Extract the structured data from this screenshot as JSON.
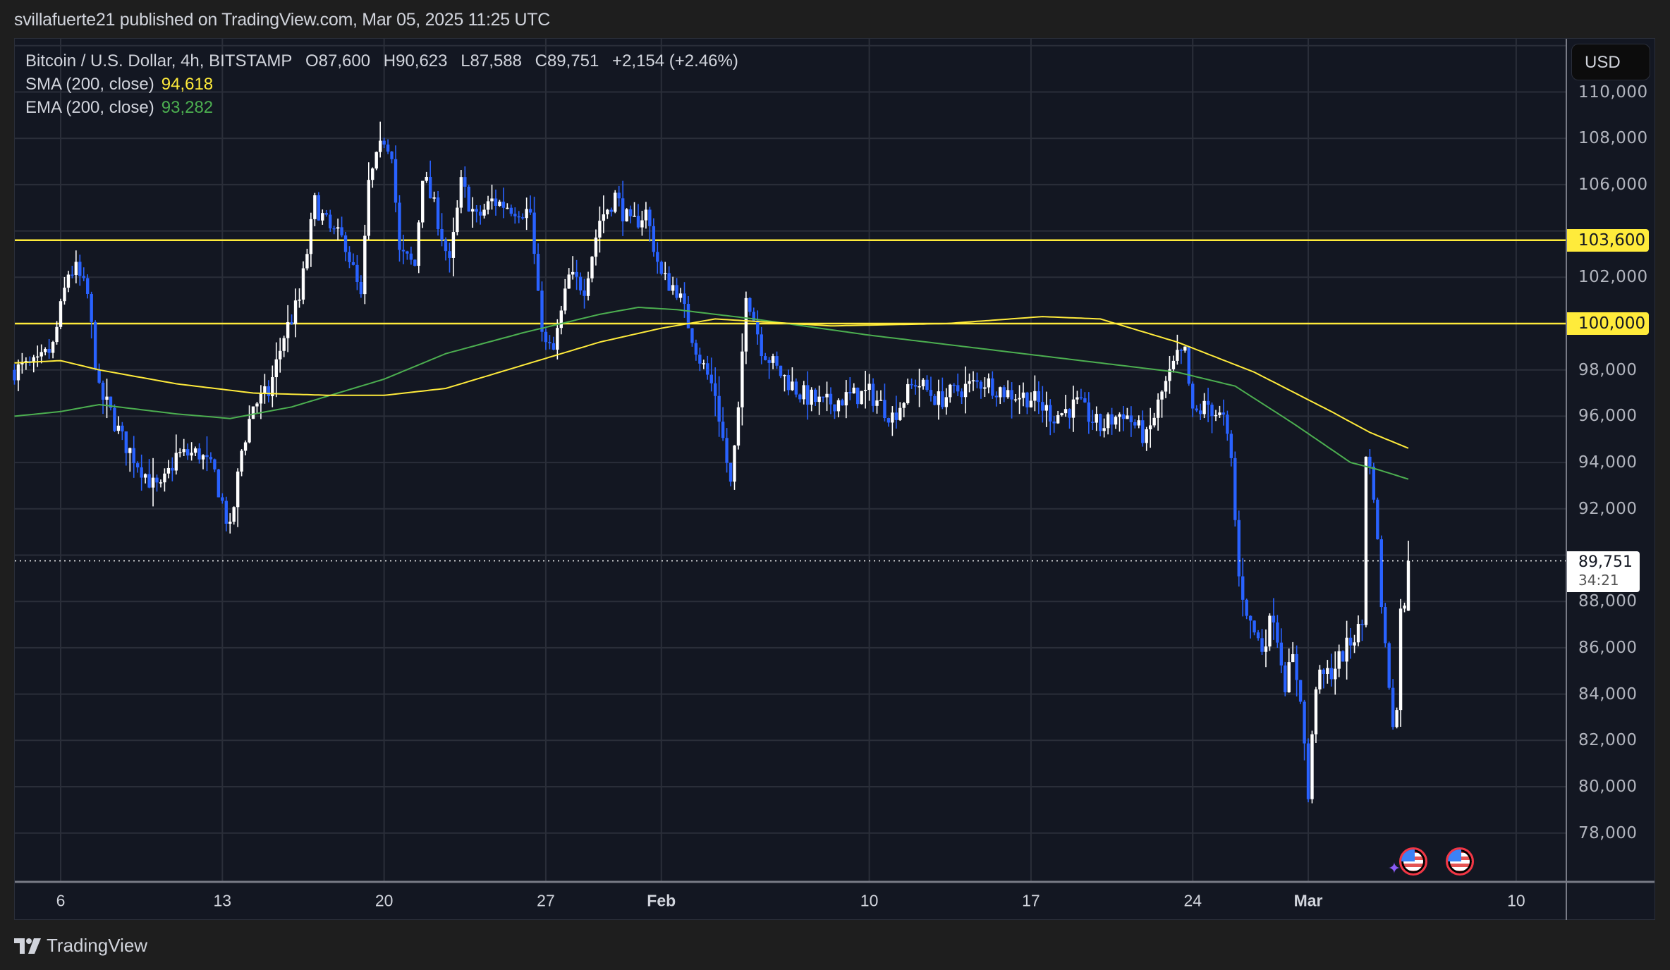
{
  "header": {
    "published": "svillafuerte21 published on TradingView.com, Mar 05, 2025 11:25 UTC"
  },
  "legend": {
    "symbol": "Bitcoin / U.S. Dollar, 4h, BITSTAMP",
    "open": "O87,600",
    "high": "H90,623",
    "low": "L87,588",
    "close": "C89,751",
    "change": "+2,154 (+2.46%)",
    "sma_label": "SMA (200, close)",
    "sma_value": "94,618",
    "ema_label": "EMA (200, close)",
    "ema_value": "93,282"
  },
  "currency_button": "USD",
  "price_tag": {
    "price": "89,751",
    "countdown": "34:21"
  },
  "level_tags": [
    {
      "label": "103,600",
      "price": 103600
    },
    {
      "label": "100,000",
      "price": 100000
    }
  ],
  "brand": "TradingView",
  "colors": {
    "background": "#131722",
    "grid": "#2a2e39",
    "up_candle": "#ffffff",
    "down_candle": "#2962ff",
    "sma": "#ffeb3b",
    "ema": "#4caf50",
    "level_line": "#ffeb3b"
  },
  "chart_data": {
    "type": "candlestick",
    "title": "Bitcoin / U.S. Dollar, 4h, BITSTAMP",
    "xlabel": "",
    "ylabel": "USD",
    "ylim": [
      76500,
      112500
    ],
    "grid": true,
    "y_ticks": [
      78000,
      80000,
      82000,
      84000,
      86000,
      88000,
      90000,
      92000,
      94000,
      96000,
      98000,
      100000,
      102000,
      104000,
      106000,
      108000,
      110000
    ],
    "y_tick_labels": [
      "78,000",
      "80,000",
      "82,000",
      "84,000",
      "86,000",
      "88,000",
      "90,000",
      "92,000",
      "94,000",
      "96,000",
      "98,000",
      "100,000",
      "102,000",
      "",
      "106,000",
      "108,000",
      "110,000"
    ],
    "x_ticks": [
      {
        "label": "6",
        "index": 0
      },
      {
        "label": "13",
        "index": 42
      },
      {
        "label": "20",
        "index": 84
      },
      {
        "label": "27",
        "index": 126
      },
      {
        "label": "Feb",
        "index": 156,
        "month": true
      },
      {
        "label": "10",
        "index": 210
      },
      {
        "label": "17",
        "index": 252
      },
      {
        "label": "24",
        "index": 294
      },
      {
        "label": "Mar",
        "index": 324,
        "month": true
      },
      {
        "label": "10",
        "index": 378
      }
    ],
    "horizontal_levels": [
      103600,
      100000
    ],
    "last_price": 89751,
    "close_path": [
      [
        -12,
        98000
      ],
      [
        -6,
        98200
      ],
      [
        -2,
        99000
      ],
      [
        2,
        102200
      ],
      [
        4,
        102300
      ],
      [
        7,
        101200
      ],
      [
        10,
        97000
      ],
      [
        12,
        96500
      ],
      [
        16,
        95000
      ],
      [
        20,
        94000
      ],
      [
        24,
        93000
      ],
      [
        26,
        92800
      ],
      [
        30,
        94300
      ],
      [
        36,
        94400
      ],
      [
        40,
        93500
      ],
      [
        44,
        91000
      ],
      [
        47,
        94500
      ],
      [
        50,
        96500
      ],
      [
        54,
        97000
      ],
      [
        58,
        99500
      ],
      [
        62,
        101000
      ],
      [
        66,
        105200
      ],
      [
        70,
        104000
      ],
      [
        74,
        103500
      ],
      [
        78,
        101000
      ],
      [
        80,
        106000
      ],
      [
        84,
        108000
      ],
      [
        86,
        107500
      ],
      [
        88,
        103000
      ],
      [
        92,
        102500
      ],
      [
        94,
        106500
      ],
      [
        98,
        104500
      ],
      [
        101,
        102500
      ],
      [
        104,
        106000
      ],
      [
        108,
        104500
      ],
      [
        112,
        105300
      ],
      [
        118,
        105000
      ],
      [
        122,
        104800
      ],
      [
        124,
        101000
      ],
      [
        126,
        99000
      ],
      [
        128,
        98800
      ],
      [
        132,
        102000
      ],
      [
        136,
        101600
      ],
      [
        140,
        104500
      ],
      [
        144,
        105500
      ],
      [
        148,
        104200
      ],
      [
        152,
        104800
      ],
      [
        156,
        102000
      ],
      [
        160,
        101500
      ],
      [
        166,
        98500
      ],
      [
        170,
        97000
      ],
      [
        174,
        93000
      ],
      [
        176,
        96000
      ],
      [
        178,
        101500
      ],
      [
        182,
        99000
      ],
      [
        186,
        98000
      ],
      [
        192,
        97000
      ],
      [
        198,
        96500
      ],
      [
        204,
        96800
      ],
      [
        210,
        97000
      ],
      [
        216,
        96000
      ],
      [
        222,
        97500
      ],
      [
        228,
        96700
      ],
      [
        234,
        97200
      ],
      [
        240,
        97500
      ],
      [
        246,
        97000
      ],
      [
        252,
        96800
      ],
      [
        258,
        96000
      ],
      [
        264,
        96500
      ],
      [
        270,
        95500
      ],
      [
        276,
        96200
      ],
      [
        282,
        95000
      ],
      [
        286,
        97000
      ],
      [
        290,
        98500
      ],
      [
        292,
        98700
      ],
      [
        294,
        96000
      ],
      [
        298,
        96500
      ],
      [
        302,
        95800
      ],
      [
        304,
        94000
      ],
      [
        306,
        89000
      ],
      [
        309,
        87000
      ],
      [
        312,
        86000
      ],
      [
        315,
        87500
      ],
      [
        318,
        84500
      ],
      [
        320,
        85500
      ],
      [
        322,
        84000
      ],
      [
        324,
        79500
      ],
      [
        326,
        84500
      ],
      [
        330,
        85000
      ],
      [
        334,
        86000
      ],
      [
        338,
        87000
      ],
      [
        339,
        94500
      ],
      [
        341,
        92800
      ],
      [
        343,
        88000
      ],
      [
        344,
        86000
      ],
      [
        346,
        83000
      ],
      [
        347,
        83200
      ],
      [
        348,
        88000
      ],
      [
        349,
        87600
      ],
      [
        350,
        89751
      ]
    ],
    "sma_path": [
      [
        -12,
        98300
      ],
      [
        0,
        98400
      ],
      [
        10,
        98000
      ],
      [
        30,
        97400
      ],
      [
        50,
        97000
      ],
      [
        70,
        96900
      ],
      [
        84,
        96900
      ],
      [
        100,
        97200
      ],
      [
        120,
        98200
      ],
      [
        140,
        99200
      ],
      [
        156,
        99800
      ],
      [
        170,
        100200
      ],
      [
        200,
        99900
      ],
      [
        230,
        100000
      ],
      [
        255,
        100300
      ],
      [
        270,
        100200
      ],
      [
        290,
        99200
      ],
      [
        310,
        97900
      ],
      [
        330,
        96200
      ],
      [
        340,
        95300
      ],
      [
        350,
        94618
      ]
    ],
    "ema_path": [
      [
        -12,
        96000
      ],
      [
        0,
        96200
      ],
      [
        10,
        96500
      ],
      [
        30,
        96100
      ],
      [
        44,
        95900
      ],
      [
        60,
        96400
      ],
      [
        84,
        97600
      ],
      [
        100,
        98700
      ],
      [
        120,
        99600
      ],
      [
        140,
        100400
      ],
      [
        150,
        100700
      ],
      [
        160,
        100600
      ],
      [
        180,
        100200
      ],
      [
        210,
        99500
      ],
      [
        240,
        98900
      ],
      [
        270,
        98300
      ],
      [
        290,
        97900
      ],
      [
        305,
        97300
      ],
      [
        320,
        95700
      ],
      [
        335,
        94000
      ],
      [
        342,
        93700
      ],
      [
        350,
        93282
      ]
    ],
    "markers": [
      {
        "type": "us-flag",
        "index": 350
      },
      {
        "type": "us-flag",
        "index": 362
      }
    ]
  }
}
